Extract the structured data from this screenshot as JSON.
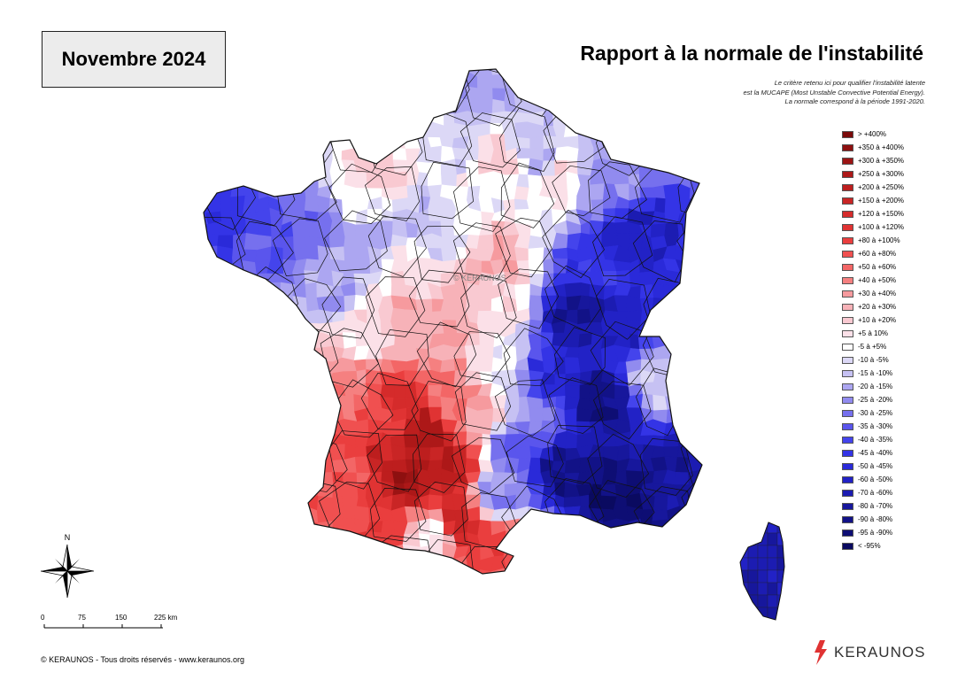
{
  "header": {
    "date_label": "Novembre 2024",
    "title": "Rapport à la normale de l'instabilité"
  },
  "notes": {
    "line1": "Le critère retenu ici pour qualifier l'instabilité latente",
    "line2": "est la MUCAPE (Most Unstable Convective Potential Energy).",
    "line3": "La normale correspond à la période 1991-2020."
  },
  "legend": [
    {
      "label": "> +400%",
      "color": "#7a0a0a"
    },
    {
      "label": "+350 à +400%",
      "color": "#8e1010"
    },
    {
      "label": "+300 à +350%",
      "color": "#9c1414"
    },
    {
      "label": "+250 à +300%",
      "color": "#ad1818"
    },
    {
      "label": "+200 à +250%",
      "color": "#bd1e1e"
    },
    {
      "label": "+150 à +200%",
      "color": "#c92525"
    },
    {
      "label": "+120 à +150%",
      "color": "#d52b2b"
    },
    {
      "label": "+100 à +120%",
      "color": "#e03333"
    },
    {
      "label": "+80 à +100%",
      "color": "#ea3e3e"
    },
    {
      "label": "+60 à +80%",
      "color": "#f05050"
    },
    {
      "label": "+50 à +60%",
      "color": "#f36666"
    },
    {
      "label": "+40 à +50%",
      "color": "#f58080"
    },
    {
      "label": "+30 à +40%",
      "color": "#f69a9e"
    },
    {
      "label": "+20 à +30%",
      "color": "#f7b2b8"
    },
    {
      "label": "+10 à +20%",
      "color": "#f9c9d1"
    },
    {
      "label": "+5 à 10%",
      "color": "#fbe0e8"
    },
    {
      "label": "-5 à +5%",
      "color": "#ffffff"
    },
    {
      "label": "-10 à -5%",
      "color": "#dcd8f6"
    },
    {
      "label": "-15 à -10%",
      "color": "#c6c1f3"
    },
    {
      "label": "-20 à -15%",
      "color": "#aca6f1"
    },
    {
      "label": "-25 à -20%",
      "color": "#918bef"
    },
    {
      "label": "-30 à -25%",
      "color": "#7670ee"
    },
    {
      "label": "-35 à -30%",
      "color": "#5a55ed"
    },
    {
      "label": "-40 à -35%",
      "color": "#4444ec"
    },
    {
      "label": "-45 à -40%",
      "color": "#3434e6"
    },
    {
      "label": "-50 à -45%",
      "color": "#2a2ad9"
    },
    {
      "label": "-60 à -50%",
      "color": "#2222c6"
    },
    {
      "label": "-70 à -60%",
      "color": "#1c1cb2"
    },
    {
      "label": "-80 à -70%",
      "color": "#17179c"
    },
    {
      "label": "-90 à -80%",
      "color": "#121287"
    },
    {
      "label": "-95 à -90%",
      "color": "#0e0e74"
    },
    {
      "label": "< -95%",
      "color": "#0a0a60"
    }
  ],
  "map": {
    "watermark": "© KERAUNOS",
    "sea_color": "#ffffff",
    "border_color": "#111111"
  },
  "compass": {
    "north_label": "N"
  },
  "scale_bar": {
    "ticks": [
      "0",
      "75",
      "150",
      "225 km"
    ]
  },
  "footer": {
    "copyright": "© KERAUNOS - Tous droits réservés - www.keraunos.org"
  },
  "brand": {
    "name": "KERAUNOS",
    "color": "#e03333"
  }
}
